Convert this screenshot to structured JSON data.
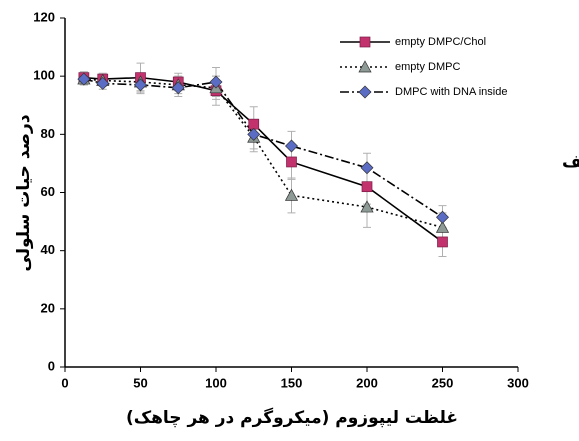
{
  "chart_data": {
    "type": "line",
    "y_label": "درصد حیات سلولی",
    "x_label": "غلظت لیپوزوم (میکروگرم در هر چاهک)",
    "annotation": "الف",
    "x": [
      12.5,
      25,
      50,
      75,
      100,
      125,
      150,
      200,
      250
    ],
    "series": [
      {
        "name": "empty DMPC/Chol",
        "color": "#c2336e",
        "line_color": "#000000",
        "dash": "solid",
        "marker": "square",
        "values": [
          99.5,
          99,
          99.5,
          98,
          95,
          83.5,
          70.5,
          62,
          43
        ],
        "errors": [
          2,
          2,
          5,
          3,
          5,
          6,
          6,
          6,
          5
        ]
      },
      {
        "name": "empty DMPC",
        "color": "#8d9a96",
        "line_color": "#000000",
        "dash": "dotted",
        "marker": "triangle",
        "values": [
          99,
          98.5,
          98,
          97,
          96,
          79,
          59,
          55,
          48
        ],
        "errors": [
          2,
          2,
          3,
          3,
          4,
          5,
          6,
          7,
          5
        ]
      },
      {
        "name": "DMPC with DNA inside",
        "color": "#5a6cc4",
        "line_color": "#000000",
        "dash": "dashdot",
        "marker": "diamond",
        "values": [
          99,
          97.5,
          97,
          96,
          98,
          80,
          76,
          68.5,
          51.5
        ],
        "errors": [
          2,
          2,
          3,
          3,
          5,
          5,
          5,
          5,
          4
        ]
      }
    ],
    "xlim": [
      0,
      300
    ],
    "xticks": [
      0,
      50,
      100,
      150,
      200,
      250,
      300
    ],
    "ylim": [
      0,
      120
    ],
    "yticks": [
      0,
      20,
      40,
      60,
      80,
      100,
      120
    ],
    "grid": false,
    "legend": "upper right",
    "error_color": "#b0b0b0"
  }
}
